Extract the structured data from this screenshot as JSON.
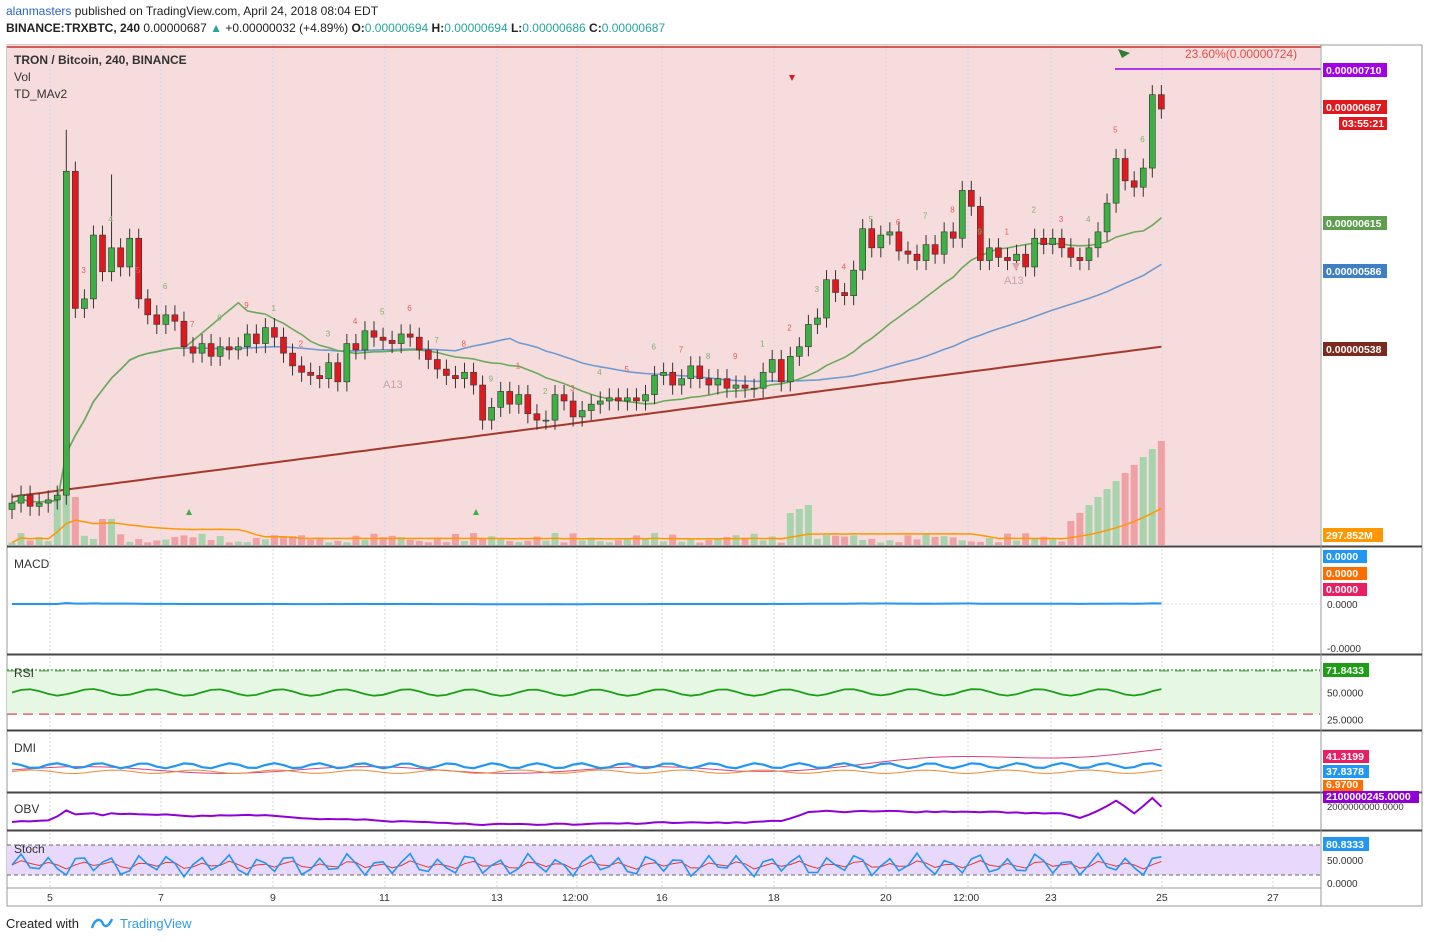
{
  "header": {
    "author": "alanmasters",
    "published_text": "published on TradingView.com, April 24, 2018 08:04 EDT",
    "symbol": "BINANCE:TRXBTC, 240",
    "last": "0.00000687",
    "change": "+0.00000032 (+4.89%)",
    "o_label": "O:",
    "o_value": "0.00000694",
    "h_label": "H:",
    "h_value": "0.00000694",
    "l_label": "L:",
    "l_value": "0.00000686",
    "c_label": "C:",
    "c_value": "0.00000687"
  },
  "footer": {
    "created_with": "Created with",
    "brand": "TradingView"
  },
  "colors": {
    "up": "#3cb043",
    "down": "#e0191f",
    "bg_main": "#f6dcdc",
    "rsi_bg": "#e6f8e4",
    "stoch_bg": "#e8d8fb",
    "ma_green": "#6aab5a",
    "ma_blue": "#6f9bd2",
    "ma_brown": "#a4392c",
    "fib": "#c9302c",
    "purple_line": "#a300e6",
    "vol_ma": "#ff9800",
    "macd": "#2196f3",
    "signal": "#ff6d00",
    "rsi_line": "#1e9e17",
    "obv_line": "#8f00d6"
  },
  "chart_data": [
    {
      "type": "candlestick",
      "title": "TRON / Bitcoin, 240, BINANCE",
      "legend_items": [
        "Vol",
        "TD_MAv2"
      ],
      "ylim": [
        4.2e-07,
        7.24e-07
      ],
      "y_ticks": [
        "0.00000720",
        "0.00000700",
        "0.00000680",
        "0.00000660",
        "0.00000640",
        "0.00000620",
        "0.00000600",
        "0.00000580",
        "0.00000560",
        "0.00000540",
        "0.00000520",
        "0.00000500",
        "0.00000480",
        "0.00000460",
        "0.00000440",
        "0.00000420"
      ],
      "x_ticks": [
        "5",
        "7",
        "9",
        "11",
        "13",
        "12:00",
        "16",
        "18",
        "20",
        "12:00",
        "23",
        "25",
        "27"
      ],
      "closes": [
        4.4e-07,
        4.45e-07,
        4.38e-07,
        4.4e-07,
        4.42e-07,
        4.45e-07,
        6.48e-07,
        5.62e-07,
        5.68e-07,
        6.08e-07,
        5.85e-07,
        6e-07,
        5.88e-07,
        6.06e-07,
        5.68e-07,
        5.58e-07,
        5.52e-07,
        5.58e-07,
        5.54e-07,
        5.38e-07,
        5.34e-07,
        5.4e-07,
        5.32e-07,
        5.38e-07,
        5.36e-07,
        5.38e-07,
        5.46e-07,
        5.4e-07,
        5.5e-07,
        5.44e-07,
        5.34e-07,
        5.26e-07,
        5.22e-07,
        5.2e-07,
        5.18e-07,
        5.28e-07,
        5.16e-07,
        5.4e-07,
        5.36e-07,
        5.48e-07,
        5.44e-07,
        5.42e-07,
        5.4e-07,
        5.46e-07,
        5.44e-07,
        5.36e-07,
        5.3e-07,
        5.24e-07,
        5.2e-07,
        5.18e-07,
        5.22e-07,
        5.14e-07,
        4.92e-07,
        5e-07,
        5.1e-07,
        5.02e-07,
        5.08e-07,
        4.96e-07,
        4.92e-07,
        4.92e-07,
        5.08e-07,
        5.04e-07,
        4.94e-07,
        4.98e-07,
        5.02e-07,
        5.04e-07,
        5.06e-07,
        5.04e-07,
        5.06e-07,
        5.04e-07,
        5.08e-07,
        5.2e-07,
        5.22e-07,
        5.14e-07,
        5.18e-07,
        5.26e-07,
        5.18e-07,
        5.14e-07,
        5.18e-07,
        5.12e-07,
        5.14e-07,
        5.12e-07,
        5.12e-07,
        5.22e-07,
        5.3e-07,
        5.16e-07,
        5.32e-07,
        5.38e-07,
        5.52e-07,
        5.56e-07,
        5.8e-07,
        5.72e-07,
        5.7e-07,
        5.86e-07,
        6.12e-07,
        6e-07,
        6.08e-07,
        6.1e-07,
        5.98e-07,
        5.96e-07,
        5.92e-07,
        6.02e-07,
        5.96e-07,
        6.1e-07,
        6.06e-07,
        6.36e-07,
        6.26e-07,
        5.92e-07,
        6e-07,
        5.94e-07,
        5.92e-07,
        5.96e-07,
        5.88e-07,
        6.06e-07,
        6.02e-07,
        6.06e-07,
        6e-07,
        5.94e-07,
        5.92e-07,
        6e-07,
        6.1e-07,
        6.28e-07,
        6.56e-07,
        6.42e-07,
        6.38e-07,
        6.5e-07,
        6.96e-07,
        6.87e-07
      ],
      "volume_ma_label": "297.852M",
      "price_labels": {
        "fib_level": "23.60%(0.00000724)",
        "purple_level": "0.00000710",
        "last_price": "0.00000687",
        "countdown": "03:55:21",
        "ma_green": "0.00000615",
        "ma_blue": "0.00000586",
        "ma_brown": "0.00000538"
      },
      "annotations": [
        "A13",
        "A13",
        "A13"
      ],
      "td_counts": [
        "1",
        "2",
        "3",
        "4",
        "5",
        "6",
        "7",
        "8",
        "9"
      ]
    },
    {
      "type": "line",
      "title": "MACD",
      "y_ticks": [
        "0.0000",
        "-0.0000"
      ],
      "value_labels": [
        "0.0000",
        "0.0000",
        "0.0000"
      ]
    },
    {
      "type": "line",
      "title": "RSI",
      "ylim": [
        25,
        75
      ],
      "y_ticks": [
        "50.0000",
        "25.0000"
      ],
      "value_label": "71.8433",
      "levels": [
        70,
        30
      ]
    },
    {
      "type": "line",
      "title": "DMI",
      "value_labels": [
        "41.3199",
        "37.8378",
        "6.9700"
      ]
    },
    {
      "type": "line",
      "title": "OBV",
      "value_labels": [
        "2100000245.0000",
        "2000000000.0000"
      ]
    },
    {
      "type": "line",
      "title": "Stoch",
      "ylim": [
        0,
        100
      ],
      "y_ticks": [
        "50.0000",
        "0.0000"
      ],
      "value_label": "80.8333",
      "levels": [
        80,
        20
      ]
    }
  ]
}
